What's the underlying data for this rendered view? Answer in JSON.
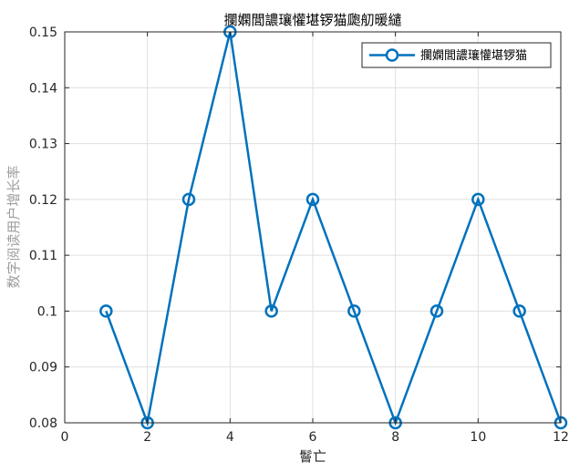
{
  "chart_data": {
    "type": "line",
    "title": "攔嫻閭譨瓖懽堪锣猫瓟舠暖繾",
    "xlabel": "鬙亡",
    "ylabel": "数字阅读用户增长率",
    "x": [
      1,
      2,
      3,
      4,
      5,
      6,
      7,
      8,
      9,
      10,
      11,
      12
    ],
    "series": [
      {
        "name": "攔嫻閭譨瓖懽堪锣猫",
        "values": [
          0.1,
          0.08,
          0.12,
          0.15,
          0.1,
          0.12,
          0.1,
          0.08,
          0.1,
          0.12,
          0.1,
          0.08
        ],
        "color": "#0072BD",
        "marker": "circle"
      }
    ],
    "xlim": [
      0,
      12
    ],
    "ylim": [
      0.08,
      0.15
    ],
    "xticks": [
      0,
      2,
      4,
      6,
      8,
      10,
      12
    ],
    "yticks": [
      0.08,
      0.09,
      0.1,
      0.11,
      0.12,
      0.13,
      0.14,
      0.15
    ],
    "xtick_labels": [
      "0",
      "2",
      "4",
      "6",
      "8",
      "10",
      "12"
    ],
    "ytick_labels": [
      "0.08",
      "0.09",
      "0.1",
      "0.11",
      "0.12",
      "0.13",
      "0.14",
      "0.15"
    ],
    "grid": true,
    "legend_position": "top-right"
  }
}
